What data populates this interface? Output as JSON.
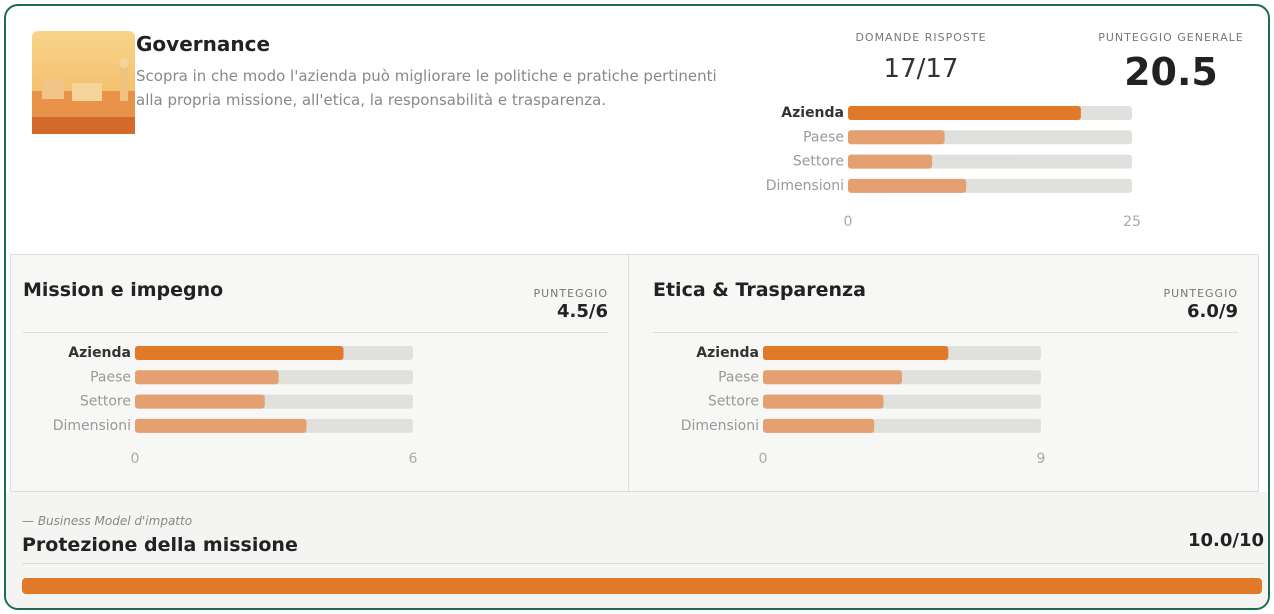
{
  "header": {
    "title": "Governance",
    "description": "Scopra in che modo l'azienda può migliorare le politiche e pratiche pertinenti alla propria missione, all'etica, la responsabilità e trasparenza."
  },
  "stats": [
    {
      "label": "DOMANDE RISPOSTE",
      "value": "17/17"
    },
    {
      "label": "PUNTEGGIO GENERALE",
      "value": "20.5"
    }
  ],
  "chart_data": [
    {
      "type": "bar",
      "orientation": "horizontal",
      "categories": [
        "Azienda",
        "Paese",
        "Settore",
        "Dimensioni"
      ],
      "values": [
        20.5,
        8.5,
        7.4,
        10.4
      ],
      "colors": [
        "#e07a2a",
        "#e4a070",
        "#e4a070",
        "#e4a070"
      ],
      "track_color": "#e0e0dc",
      "xlim": [
        0,
        25
      ],
      "xticks": [
        0,
        25
      ]
    },
    {
      "type": "bar",
      "orientation": "horizontal",
      "title": "Mission e impegno",
      "score_label": "PUNTEGGIO",
      "score": "4.5/6",
      "categories": [
        "Azienda",
        "Paese",
        "Settore",
        "Dimensioni"
      ],
      "values": [
        4.5,
        3.1,
        2.8,
        3.7
      ],
      "colors": [
        "#e07a2a",
        "#e4a070",
        "#e4a070",
        "#e4a070"
      ],
      "track_color": "#e0e0dc",
      "xlim": [
        0,
        6
      ],
      "xticks": [
        0,
        6
      ]
    },
    {
      "type": "bar",
      "orientation": "horizontal",
      "title": "Etica & Trasparenza",
      "score_label": "PUNTEGGIO",
      "score": "6.0/9",
      "categories": [
        "Azienda",
        "Paese",
        "Settore",
        "Dimensioni"
      ],
      "values": [
        6.0,
        4.5,
        3.9,
        3.6
      ],
      "colors": [
        "#e07a2a",
        "#e4a070",
        "#e4a070",
        "#e4a070"
      ],
      "track_color": "#e0e0dc",
      "xlim": [
        0,
        9
      ],
      "xticks": [
        0,
        9
      ]
    },
    {
      "type": "progress",
      "subtitle": "— Business Model d'impatto",
      "title": "Protezione della missione",
      "score": "10.0/10",
      "values": [
        10
      ],
      "colors": [
        "#e07a2a"
      ],
      "track_color": "#e0e0dc",
      "xlim": [
        0,
        10
      ]
    }
  ]
}
